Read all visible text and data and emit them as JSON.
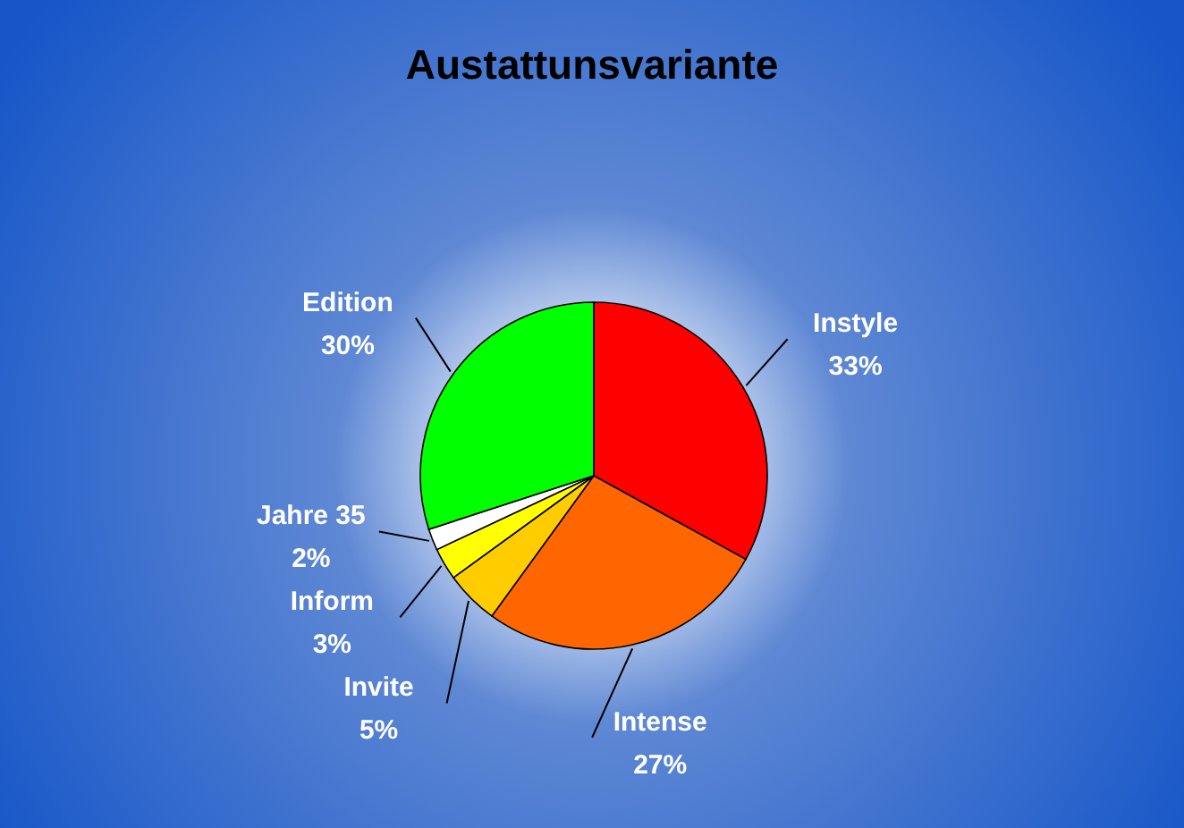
{
  "chart_data": {
    "type": "pie",
    "title": "Austattunsvariante",
    "categories": [
      "Instyle",
      "Intense",
      "Invite",
      "Inform",
      "Jahre 35",
      "Edition"
    ],
    "values": [
      33,
      27,
      5,
      3,
      2,
      30
    ],
    "colors": [
      "#ff0000",
      "#ff6600",
      "#ffcc00",
      "#ffff00",
      "#ffffff",
      "#00ff00"
    ],
    "value_labels": [
      "33%",
      "27%",
      "5%",
      "3%",
      "2%",
      "30%"
    ]
  }
}
